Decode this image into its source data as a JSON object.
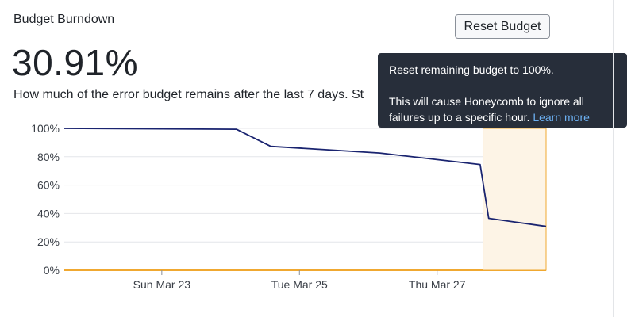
{
  "panel": {
    "title": "Budget Burndown",
    "value": "30.91%",
    "description": "How much of the error budget remains after the last 7 days. St"
  },
  "reset_button": {
    "label": "Reset Budget"
  },
  "tooltip": {
    "line1": "Reset remaining budget to 100%.",
    "line2": "This will cause Honeycomb to ignore all failures up to a specific hour.",
    "link": "Learn more"
  },
  "colors": {
    "line": "#1a2470",
    "baseline": "#f0a830",
    "highlight_fill": "#fdf4e6",
    "highlight_stroke": "#f0a830",
    "tooltip_bg": "#272e3a",
    "link": "#6cb0f2"
  },
  "chart_data": {
    "type": "line",
    "title": "",
    "xlabel": "",
    "ylabel": "",
    "ylim": [
      0,
      100
    ],
    "xlim": [
      "2025-03-21T14:00",
      "2025-03-28T14:00"
    ],
    "x_tick_labels": [
      {
        "label": "Sun Mar 23",
        "x": "2025-03-23T00:00"
      },
      {
        "label": "Tue Mar 25",
        "x": "2025-03-25T00:00"
      },
      {
        "label": "Thu Mar 27",
        "x": "2025-03-27T00:00"
      }
    ],
    "y_ticks": [
      0,
      20,
      40,
      60,
      80,
      100
    ],
    "y_tick_labels": [
      "0%",
      "20%",
      "40%",
      "60%",
      "80%",
      "100%"
    ],
    "grid": true,
    "series": [
      {
        "values": [
          {
            "x": "2025-03-21T14:00",
            "y": 100
          },
          {
            "x": "2025-03-24T02:00",
            "y": 99.4
          },
          {
            "x": "2025-03-24T14:00",
            "y": 87.3
          },
          {
            "x": "2025-03-26T04:00",
            "y": 82.6
          },
          {
            "x": "2025-03-27T15:00",
            "y": 74.5
          },
          {
            "x": "2025-03-27T18:00",
            "y": 36.6
          },
          {
            "x": "2025-03-28T14:00",
            "y": 30.9
          }
        ]
      }
    ],
    "highlight_range": [
      "2025-03-27T16:00",
      "2025-03-28T14:00"
    ]
  }
}
